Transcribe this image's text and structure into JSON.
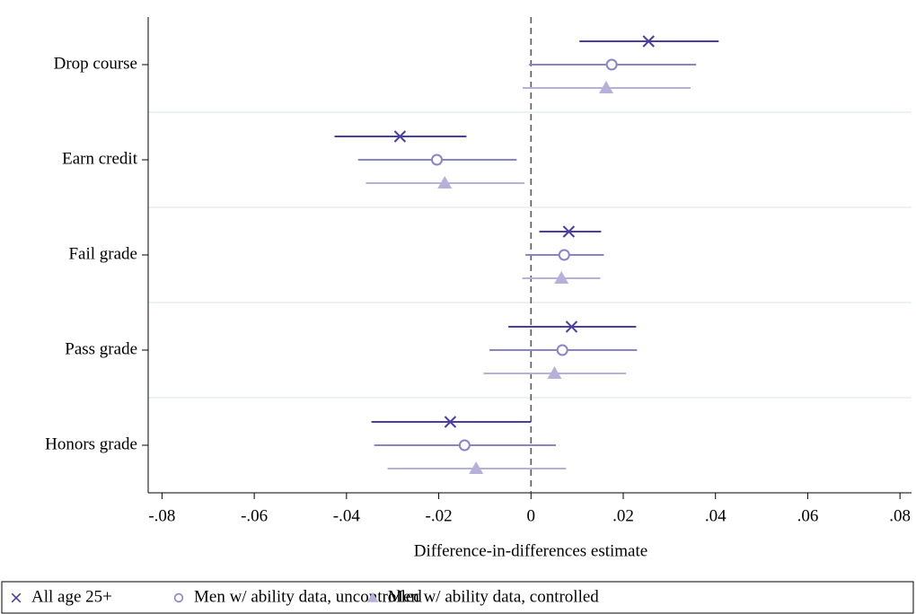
{
  "chart_data": {
    "type": "coefplot",
    "x_label": "Difference-in-differences estimate",
    "categories": [
      "Drop course",
      "Earn credit",
      "Fail grade",
      "Pass grade",
      "Honors grade"
    ],
    "xlim": [
      -0.083,
      0.0825
    ],
    "xticks": [
      {
        "value": -0.08,
        "label": "-.08"
      },
      {
        "value": -0.06,
        "label": "-.06"
      },
      {
        "value": -0.04,
        "label": "-.04"
      },
      {
        "value": -0.02,
        "label": "-.02"
      },
      0,
      {
        "value": 0.02,
        "label": ".02"
      },
      {
        "value": 0.04,
        "label": ".04"
      },
      {
        "value": 0.06,
        "label": ".06"
      },
      {
        "value": 0.08,
        "label": ".08"
      }
    ],
    "reference_line": 0,
    "series": [
      {
        "name": "All age 25+",
        "color": "#4a3fa0",
        "marker": "x",
        "values": [
          0.0255,
          -0.0284,
          0.0082,
          0.0088,
          -0.0175
        ],
        "lower": [
          0.0105,
          -0.0426,
          0.0018,
          -0.0049,
          -0.0346
        ],
        "upper": [
          0.0407,
          -0.014,
          0.0152,
          0.0228,
          0.0
        ]
      },
      {
        "name": "Men w/ ability data, uncontrolled",
        "color": "#8a84c4",
        "marker": "circle",
        "values": [
          0.0175,
          -0.0204,
          0.0072,
          0.0068,
          -0.0144
        ],
        "lower": [
          -0.0004,
          -0.0375,
          -0.0012,
          -0.009,
          -0.034
        ],
        "upper": [
          0.0358,
          -0.0031,
          0.0158,
          0.023,
          0.0054
        ]
      },
      {
        "name": "Men w/ ability data, controlled",
        "color": "#b5b1da",
        "marker": "triangle",
        "values": [
          0.0163,
          -0.0187,
          0.0066,
          0.0051,
          -0.0119
        ],
        "lower": [
          -0.0018,
          -0.0358,
          -0.0019,
          -0.0103,
          -0.0311
        ],
        "upper": [
          0.0346,
          -0.0014,
          0.015,
          0.0206,
          0.0076
        ]
      }
    ]
  }
}
